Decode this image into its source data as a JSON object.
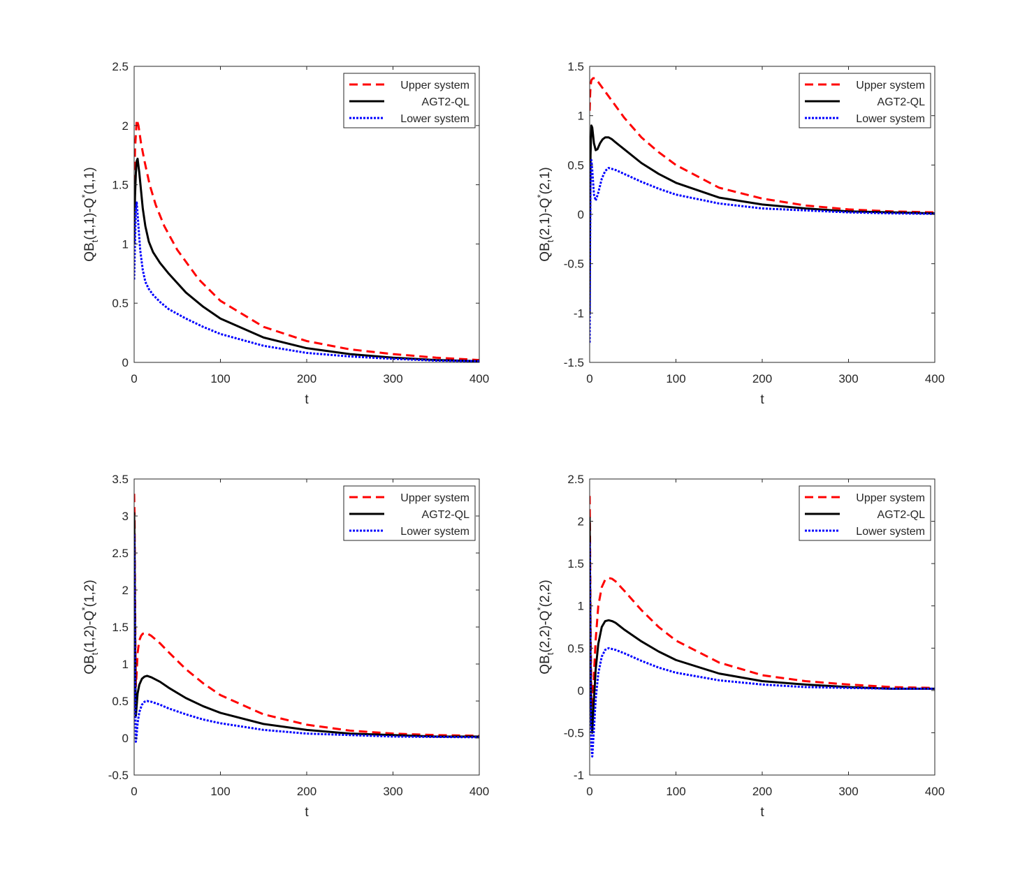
{
  "legend": [
    "Upper system",
    "AGT2-QL",
    "Lower system"
  ],
  "styles": {
    "upper": {
      "color": "#ff0000",
      "dash": "12,7"
    },
    "agt": {
      "color": "#000000",
      "dash": ""
    },
    "lower": {
      "color": "#0000ff",
      "dash": "3,2"
    }
  },
  "chart_data": [
    {
      "type": "line",
      "position": "top-left",
      "xlabel": "t",
      "ylabel": {
        "pre": "QB",
        "sub": "t",
        "mid": "(1,1)-Q",
        "sup": "*",
        "post": "(1,1)"
      },
      "xlim": [
        0,
        400
      ],
      "ylim": [
        0,
        2.5
      ],
      "xticks": [
        0,
        100,
        200,
        300,
        400
      ],
      "xtick_labels": [
        "0",
        "100",
        "200",
        "300",
        "400"
      ],
      "yticks": [
        0,
        0.5,
        1,
        1.5,
        2,
        2.5
      ],
      "ytick_labels": [
        "0",
        "0.5",
        "1",
        "1.5",
        "2",
        "2.5"
      ],
      "legend_loc": "top-right",
      "series": [
        {
          "name": "Upper system",
          "x": [
            0,
            1,
            3,
            5,
            8,
            12,
            18,
            25,
            35,
            50,
            75,
            100,
            150,
            200,
            250,
            300,
            350,
            400
          ],
          "y": [
            1.4,
            1.8,
            2.05,
            2.0,
            1.85,
            1.7,
            1.5,
            1.33,
            1.15,
            0.95,
            0.7,
            0.52,
            0.3,
            0.18,
            0.11,
            0.07,
            0.04,
            0.02
          ]
        },
        {
          "name": "AGT2-QL",
          "x": [
            0,
            1,
            2,
            3,
            4,
            6,
            8,
            10,
            13,
            17,
            22,
            30,
            40,
            60,
            80,
            100,
            150,
            200,
            250,
            300,
            350,
            400
          ],
          "y": [
            1.0,
            1.4,
            1.6,
            1.7,
            1.72,
            1.6,
            1.45,
            1.3,
            1.15,
            1.02,
            0.93,
            0.84,
            0.75,
            0.59,
            0.47,
            0.37,
            0.21,
            0.12,
            0.07,
            0.04,
            0.02,
            0.01
          ]
        },
        {
          "name": "Lower system",
          "x": [
            0,
            1,
            2,
            3,
            5,
            7,
            10,
            13,
            17,
            22,
            30,
            40,
            60,
            80,
            100,
            150,
            200,
            250,
            300,
            350,
            400
          ],
          "y": [
            0.7,
            1.0,
            1.3,
            1.35,
            1.15,
            0.95,
            0.78,
            0.68,
            0.62,
            0.57,
            0.51,
            0.45,
            0.37,
            0.3,
            0.24,
            0.14,
            0.08,
            0.05,
            0.03,
            0.015,
            0.01
          ]
        }
      ]
    },
    {
      "type": "line",
      "position": "top-right",
      "xlabel": "t",
      "ylabel": {
        "pre": "QB",
        "sub": "t",
        "mid": "(2,1)-Q",
        "sup": "*",
        "post": "(2,1)"
      },
      "xlim": [
        0,
        400
      ],
      "ylim": [
        -1.5,
        1.5
      ],
      "xticks": [
        0,
        100,
        200,
        300,
        400
      ],
      "xtick_labels": [
        "0",
        "100",
        "200",
        "300",
        "400"
      ],
      "yticks": [
        -1.5,
        -1,
        -0.5,
        0,
        0.5,
        1,
        1.5
      ],
      "ytick_labels": [
        "-1.5",
        "-1",
        "-0.5",
        "0",
        "0.5",
        "1",
        "1.5"
      ],
      "legend_loc": "top-right",
      "series": [
        {
          "name": "Upper system",
          "x": [
            0,
            0.5,
            1,
            2,
            4,
            6,
            10,
            15,
            20,
            30,
            40,
            60,
            80,
            100,
            150,
            200,
            250,
            300,
            350,
            400
          ],
          "y": [
            1.05,
            1.2,
            1.3,
            1.36,
            1.38,
            1.38,
            1.34,
            1.28,
            1.22,
            1.1,
            0.98,
            0.78,
            0.63,
            0.5,
            0.27,
            0.16,
            0.09,
            0.05,
            0.03,
            0.02
          ]
        },
        {
          "name": "AGT2-QL",
          "x": [
            0,
            0.5,
            1,
            2,
            3,
            5,
            7,
            9,
            12,
            15,
            18,
            22,
            26,
            30,
            40,
            60,
            80,
            100,
            150,
            200,
            250,
            300,
            350,
            400
          ],
          "y": [
            -1.0,
            0.0,
            0.6,
            0.9,
            0.88,
            0.72,
            0.65,
            0.66,
            0.72,
            0.76,
            0.78,
            0.78,
            0.76,
            0.73,
            0.66,
            0.52,
            0.41,
            0.32,
            0.17,
            0.1,
            0.06,
            0.03,
            0.02,
            0.01
          ]
        },
        {
          "name": "Lower system",
          "x": [
            0,
            0.5,
            1,
            2,
            3,
            5,
            7,
            10,
            14,
            18,
            22,
            26,
            30,
            40,
            60,
            80,
            100,
            150,
            200,
            250,
            300,
            350,
            400
          ],
          "y": [
            -1.3,
            -0.3,
            0.3,
            0.55,
            0.45,
            0.2,
            0.14,
            0.22,
            0.36,
            0.44,
            0.47,
            0.46,
            0.45,
            0.41,
            0.33,
            0.26,
            0.2,
            0.11,
            0.06,
            0.04,
            0.02,
            0.01,
            0.005
          ]
        }
      ]
    },
    {
      "type": "line",
      "position": "bottom-left",
      "xlabel": "t",
      "ylabel": {
        "pre": "QB",
        "sub": "t",
        "mid": "(1,2)-Q",
        "sup": "*",
        "post": "(1,2)"
      },
      "xlim": [
        0,
        400
      ],
      "ylim": [
        -0.5,
        3.5
      ],
      "xticks": [
        0,
        100,
        200,
        300,
        400
      ],
      "xtick_labels": [
        "0",
        "100",
        "200",
        "300",
        "400"
      ],
      "yticks": [
        -0.5,
        0,
        0.5,
        1,
        1.5,
        2,
        2.5,
        3,
        3.5
      ],
      "ytick_labels": [
        "-0.5",
        "0",
        "0.5",
        "1",
        "1.5",
        "2",
        "2.5",
        "3",
        "3.5"
      ],
      "legend_loc": "top-right",
      "series": [
        {
          "name": "Upper system",
          "x": [
            0,
            0.5,
            1,
            1.5,
            2,
            3,
            4,
            6,
            8,
            10,
            14,
            20,
            30,
            40,
            60,
            80,
            100,
            150,
            200,
            250,
            300,
            350,
            400
          ],
          "y": [
            3.3,
            3.0,
            2.0,
            1.2,
            0.7,
            0.9,
            1.15,
            1.32,
            1.38,
            1.41,
            1.42,
            1.38,
            1.28,
            1.16,
            0.93,
            0.74,
            0.58,
            0.32,
            0.18,
            0.1,
            0.06,
            0.04,
            0.03
          ]
        },
        {
          "name": "AGT2-QL",
          "x": [
            0,
            0.5,
            1,
            1.5,
            2,
            3,
            4,
            6,
            9,
            12,
            15,
            20,
            30,
            40,
            60,
            80,
            100,
            150,
            200,
            250,
            300,
            350,
            400
          ],
          "y": [
            3.05,
            2.6,
            1.5,
            0.7,
            0.3,
            0.45,
            0.6,
            0.72,
            0.8,
            0.83,
            0.84,
            0.82,
            0.76,
            0.68,
            0.54,
            0.43,
            0.34,
            0.19,
            0.11,
            0.06,
            0.04,
            0.02,
            0.02
          ]
        },
        {
          "name": "Lower system",
          "x": [
            0,
            0.5,
            1,
            1.5,
            2,
            3,
            4,
            6,
            9,
            12,
            15,
            20,
            30,
            40,
            60,
            80,
            100,
            150,
            200,
            250,
            300,
            350,
            400
          ],
          "y": [
            2.75,
            2.0,
            0.9,
            0.3,
            -0.05,
            0.05,
            0.2,
            0.35,
            0.45,
            0.49,
            0.5,
            0.49,
            0.45,
            0.4,
            0.32,
            0.25,
            0.2,
            0.11,
            0.06,
            0.04,
            0.02,
            0.015,
            0.01
          ]
        }
      ]
    },
    {
      "type": "line",
      "position": "bottom-right",
      "xlabel": "t",
      "ylabel": {
        "pre": "QB",
        "sub": "t",
        "mid": "(2,2)-Q",
        "sup": "*",
        "post": "(2,2)"
      },
      "xlim": [
        0,
        400
      ],
      "ylim": [
        -1,
        2.5
      ],
      "xticks": [
        0,
        100,
        200,
        300,
        400
      ],
      "xtick_labels": [
        "0",
        "100",
        "200",
        "300",
        "400"
      ],
      "yticks": [
        -1,
        -0.5,
        0,
        0.5,
        1,
        1.5,
        2,
        2.5
      ],
      "ytick_labels": [
        "-1",
        "-0.5",
        "0",
        "0.5",
        "1",
        "1.5",
        "2",
        "2.5"
      ],
      "legend_loc": "top-right",
      "series": [
        {
          "name": "Upper system",
          "x": [
            0,
            0.5,
            1,
            2,
            3,
            5,
            7,
            10,
            14,
            18,
            22,
            26,
            30,
            40,
            60,
            80,
            100,
            150,
            200,
            250,
            300,
            350,
            400
          ],
          "y": [
            2.3,
            1.7,
            0.8,
            -0.1,
            -0.2,
            0.2,
            0.6,
            1.0,
            1.22,
            1.31,
            1.33,
            1.32,
            1.29,
            1.18,
            0.95,
            0.75,
            0.59,
            0.33,
            0.18,
            0.11,
            0.07,
            0.04,
            0.03
          ]
        },
        {
          "name": "AGT2-QL",
          "x": [
            0,
            0.5,
            1,
            2,
            3,
            5,
            7,
            10,
            14,
            18,
            22,
            26,
            30,
            40,
            60,
            80,
            100,
            150,
            200,
            250,
            300,
            350,
            400
          ],
          "y": [
            2.05,
            1.3,
            0.4,
            -0.4,
            -0.5,
            -0.1,
            0.25,
            0.55,
            0.75,
            0.82,
            0.83,
            0.82,
            0.8,
            0.72,
            0.58,
            0.46,
            0.36,
            0.2,
            0.11,
            0.07,
            0.04,
            0.02,
            0.02
          ]
        },
        {
          "name": "Lower system",
          "x": [
            0,
            0.5,
            1,
            2,
            3,
            5,
            7,
            10,
            14,
            18,
            22,
            26,
            30,
            40,
            60,
            80,
            100,
            150,
            200,
            250,
            300,
            350,
            400
          ],
          "y": [
            1.75,
            0.9,
            0.0,
            -0.65,
            -0.78,
            -0.45,
            -0.1,
            0.2,
            0.4,
            0.48,
            0.5,
            0.49,
            0.48,
            0.44,
            0.35,
            0.27,
            0.21,
            0.12,
            0.07,
            0.04,
            0.03,
            0.02,
            0.02
          ]
        }
      ]
    }
  ]
}
